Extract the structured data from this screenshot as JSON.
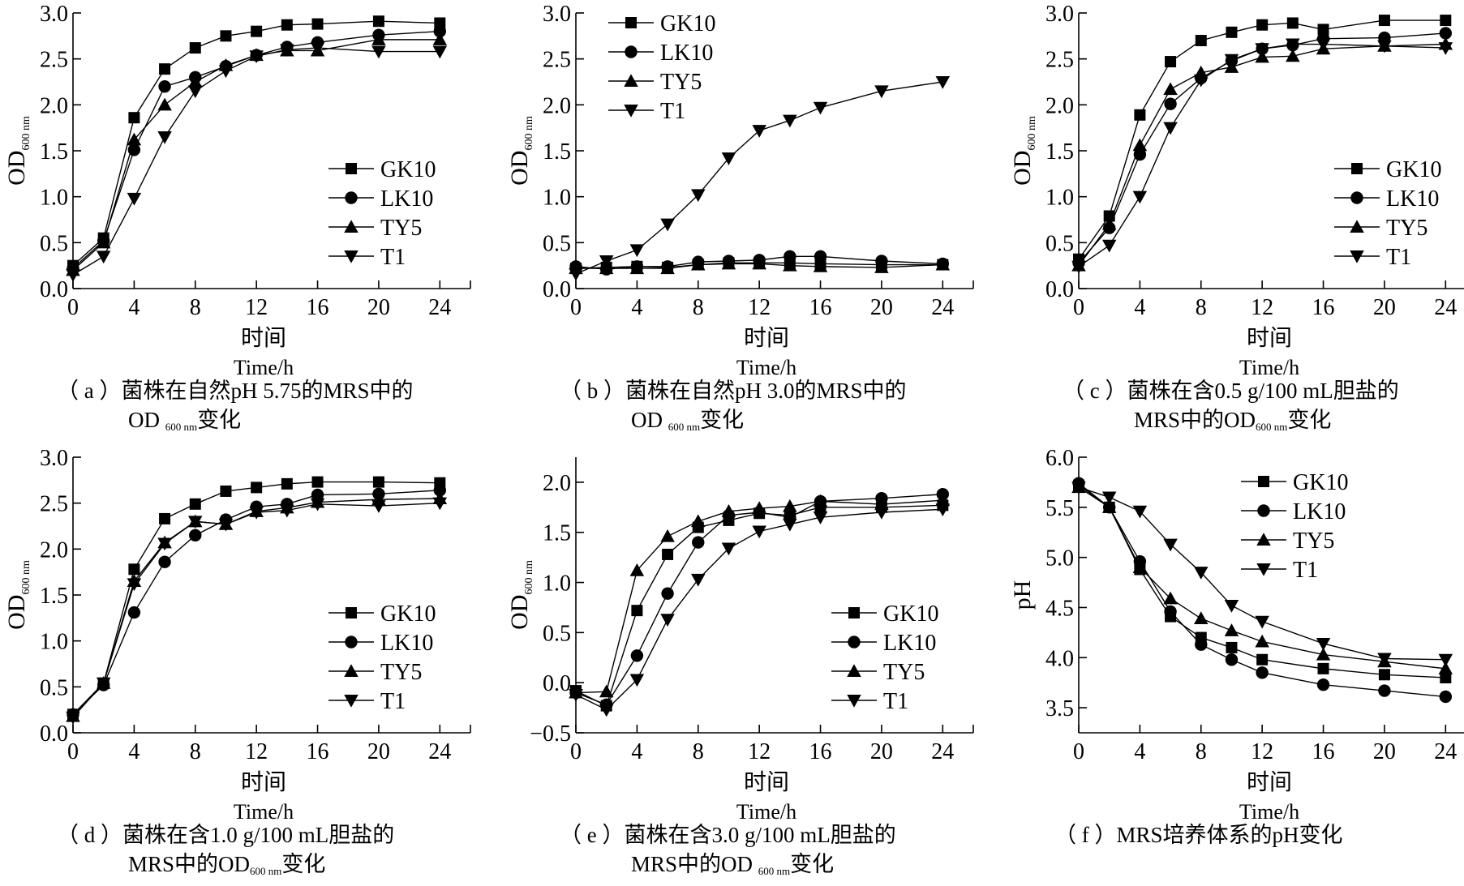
{
  "chart_data": [
    {
      "id": "a",
      "type": "line",
      "ylabel": "OD",
      "ylabel_sub": "600 nm",
      "xlabel_cn": "时间",
      "xlabel": "Time/h",
      "caption_tag": "（ a ）",
      "caption_line1": "菌株在自然pH 5.75的MRS中的",
      "caption_line2_pre": "OD ",
      "caption_line2_sub": "600 nm",
      "caption_line2_post": "变化",
      "xlim": [
        0,
        26
      ],
      "ylim": [
        0,
        3.0
      ],
      "xticks": [
        0,
        4,
        8,
        12,
        16,
        20,
        24
      ],
      "yticks": [
        0.0,
        0.5,
        1.0,
        1.5,
        2.0,
        2.5,
        3.0
      ],
      "ytick_labels": [
        "0.0",
        "0.5",
        "1.0",
        "1.5",
        "2.0",
        "2.5",
        "3.0"
      ],
      "legend_position": "bottom-right",
      "x": [
        0,
        2,
        4,
        6,
        8,
        10,
        12,
        14,
        16,
        20,
        24
      ],
      "series": [
        {
          "name": "GK10",
          "marker": "square",
          "values": [
            0.25,
            0.55,
            1.86,
            2.39,
            2.62,
            2.75,
            2.8,
            2.87,
            2.88,
            2.91,
            2.89
          ]
        },
        {
          "name": "LK10",
          "marker": "circle",
          "values": [
            0.22,
            0.52,
            1.51,
            2.2,
            2.3,
            2.42,
            2.54,
            2.63,
            2.68,
            2.76,
            2.8
          ]
        },
        {
          "name": "TY5",
          "marker": "triangle-up",
          "values": [
            0.2,
            0.5,
            1.62,
            2.0,
            2.25,
            2.43,
            2.54,
            2.59,
            2.59,
            2.71,
            2.71
          ]
        },
        {
          "name": "T1",
          "marker": "triangle-down",
          "values": [
            0.15,
            0.35,
            0.98,
            1.65,
            2.15,
            2.37,
            2.53,
            2.6,
            2.62,
            2.58,
            2.58
          ]
        }
      ]
    },
    {
      "id": "b",
      "type": "line",
      "ylabel": "OD",
      "ylabel_sub": "600 nm",
      "xlabel_cn": "时间",
      "xlabel": "Time/h",
      "caption_tag": "（ b ）",
      "caption_line1": "菌株在自然pH 3.0的MRS中的",
      "caption_line2_pre": "OD ",
      "caption_line2_sub": "600 nm",
      "caption_line2_post": "变化",
      "xlim": [
        0,
        26
      ],
      "ylim": [
        0,
        3.0
      ],
      "xticks": [
        0,
        4,
        8,
        12,
        16,
        20,
        24
      ],
      "yticks": [
        0.0,
        0.5,
        1.0,
        1.5,
        2.0,
        2.5,
        3.0
      ],
      "ytick_labels": [
        "0.0",
        "0.5",
        "1.0",
        "1.5",
        "2.0",
        "2.5",
        "3.0"
      ],
      "legend_position": "top-left",
      "x": [
        0,
        2,
        4,
        6,
        8,
        10,
        12,
        14,
        16,
        20,
        24
      ],
      "series": [
        {
          "name": "GK10",
          "marker": "square",
          "values": [
            0.22,
            0.23,
            0.24,
            0.23,
            0.26,
            0.28,
            0.28,
            0.28,
            0.27,
            0.26,
            0.26
          ]
        },
        {
          "name": "LK10",
          "marker": "circle",
          "values": [
            0.24,
            0.21,
            0.24,
            0.24,
            0.29,
            0.3,
            0.31,
            0.35,
            0.35,
            0.3,
            0.27
          ]
        },
        {
          "name": "TY5",
          "marker": "triangle-up",
          "values": [
            0.22,
            0.22,
            0.22,
            0.22,
            0.26,
            0.27,
            0.27,
            0.25,
            0.24,
            0.23,
            0.26
          ]
        },
        {
          "name": "T1",
          "marker": "triangle-down",
          "values": [
            0.16,
            0.3,
            0.42,
            0.7,
            1.02,
            1.42,
            1.72,
            1.83,
            1.97,
            2.15,
            2.25
          ]
        }
      ]
    },
    {
      "id": "c",
      "type": "line",
      "ylabel": "OD",
      "ylabel_sub": "600 nm",
      "xlabel_cn": "时间",
      "xlabel": "Time/h",
      "caption_tag": "（ c ）",
      "caption_line1": "菌株在含0.5 g/100 mL胆盐的",
      "caption_line2_pre": "MRS中的OD",
      "caption_line2_sub": "600 nm",
      "caption_line2_post": "变化",
      "xlim": [
        0,
        26
      ],
      "ylim": [
        0,
        3.0
      ],
      "xticks": [
        0,
        4,
        8,
        12,
        16,
        20,
        24
      ],
      "yticks": [
        0.0,
        0.5,
        1.0,
        1.5,
        2.0,
        2.5,
        3.0
      ],
      "ytick_labels": [
        "0.0",
        "0.5",
        "1.0",
        "1.5",
        "2.0",
        "2.5",
        "3.0"
      ],
      "legend_position": "bottom-right",
      "x": [
        0,
        2,
        4,
        6,
        8,
        10,
        12,
        14,
        16,
        20,
        24
      ],
      "series": [
        {
          "name": "GK10",
          "marker": "square",
          "values": [
            0.32,
            0.79,
            1.89,
            2.47,
            2.7,
            2.79,
            2.87,
            2.89,
            2.82,
            2.92,
            2.92
          ]
        },
        {
          "name": "LK10",
          "marker": "circle",
          "values": [
            0.28,
            0.66,
            1.46,
            2.01,
            2.29,
            2.48,
            2.61,
            2.65,
            2.72,
            2.73,
            2.78
          ]
        },
        {
          "name": "TY5",
          "marker": "triangle-up",
          "values": [
            0.25,
            0.7,
            1.56,
            2.17,
            2.35,
            2.41,
            2.52,
            2.53,
            2.61,
            2.64,
            2.66
          ]
        },
        {
          "name": "T1",
          "marker": "triangle-down",
          "values": [
            0.24,
            0.47,
            1.0,
            1.75,
            2.27,
            2.49,
            2.61,
            2.66,
            2.66,
            2.64,
            2.62
          ]
        }
      ]
    },
    {
      "id": "d",
      "type": "line",
      "ylabel": "OD",
      "ylabel_sub": "600 nm",
      "xlabel_cn": "时间",
      "xlabel": "Time/h",
      "caption_tag": "（ d ）",
      "caption_line1": "菌株在含1.0 g/100 mL胆盐的",
      "caption_line2_pre": "MRS中的OD",
      "caption_line2_sub": "600 nm",
      "caption_line2_post": "变化",
      "xlim": [
        0,
        26
      ],
      "ylim": [
        0,
        3.0
      ],
      "xticks": [
        0,
        4,
        8,
        12,
        16,
        20,
        24
      ],
      "yticks": [
        0.0,
        0.5,
        1.0,
        1.5,
        2.0,
        2.5,
        3.0
      ],
      "ytick_labels": [
        "0.0",
        "0.5",
        "1.0",
        "1.5",
        "2.0",
        "2.5",
        "3.0"
      ],
      "legend_position": "bottom-right",
      "x": [
        0,
        2,
        4,
        6,
        8,
        10,
        12,
        14,
        16,
        20,
        24
      ],
      "series": [
        {
          "name": "GK10",
          "marker": "square",
          "values": [
            0.2,
            0.54,
            1.78,
            2.33,
            2.49,
            2.63,
            2.67,
            2.71,
            2.73,
            2.73,
            2.72
          ]
        },
        {
          "name": "LK10",
          "marker": "circle",
          "values": [
            0.2,
            0.52,
            1.31,
            1.86,
            2.15,
            2.32,
            2.46,
            2.49,
            2.59,
            2.6,
            2.64
          ]
        },
        {
          "name": "TY5",
          "marker": "triangle-up",
          "values": [
            0.18,
            0.54,
            1.65,
            2.07,
            2.3,
            2.27,
            2.41,
            2.45,
            2.51,
            2.54,
            2.55
          ]
        },
        {
          "name": "T1",
          "marker": "triangle-down",
          "values": [
            0.17,
            0.54,
            1.62,
            2.06,
            2.3,
            2.27,
            2.4,
            2.42,
            2.49,
            2.47,
            2.5
          ]
        }
      ]
    },
    {
      "id": "e",
      "type": "line",
      "ylabel": "OD",
      "ylabel_sub": "600 nm",
      "xlabel_cn": "时间",
      "xlabel": "Time/h",
      "caption_tag": "（ e ）",
      "caption_line1": "菌株在含3.0 g/100 mL胆盐的",
      "caption_line2_pre": "MRS中的OD ",
      "caption_line2_sub": "600 nm",
      "caption_line2_post": "变化",
      "xlim": [
        0,
        26
      ],
      "ylim": [
        -0.5,
        2.25
      ],
      "xticks": [
        0,
        4,
        8,
        12,
        16,
        20,
        24
      ],
      "yticks": [
        -0.5,
        0.0,
        0.5,
        1.0,
        1.5,
        2.0
      ],
      "ytick_labels": [
        "−0.5",
        "0.0",
        "0.5",
        "1.0",
        "1.5",
        "2.0"
      ],
      "legend_position": "bottom-right",
      "x": [
        0,
        2,
        4,
        6,
        8,
        10,
        12,
        14,
        16,
        20,
        24
      ],
      "series": [
        {
          "name": "GK10",
          "marker": "square",
          "values": [
            -0.08,
            -0.23,
            0.72,
            1.28,
            1.55,
            1.62,
            1.69,
            1.67,
            1.75,
            1.75,
            1.77
          ]
        },
        {
          "name": "LK10",
          "marker": "circle",
          "values": [
            -0.1,
            -0.22,
            0.27,
            0.89,
            1.4,
            1.67,
            1.7,
            1.65,
            1.81,
            1.84,
            1.88
          ]
        },
        {
          "name": "TY5",
          "marker": "triangle-up",
          "values": [
            -0.1,
            -0.09,
            1.12,
            1.46,
            1.61,
            1.71,
            1.74,
            1.76,
            1.81,
            1.78,
            1.82
          ]
        },
        {
          "name": "T1",
          "marker": "triangle-down",
          "values": [
            -0.12,
            -0.27,
            0.03,
            0.63,
            1.03,
            1.34,
            1.51,
            1.58,
            1.65,
            1.7,
            1.73
          ]
        }
      ]
    },
    {
      "id": "f",
      "type": "line",
      "ylabel": "pH",
      "ylabel_sub": "",
      "xlabel_cn": "时间",
      "xlabel": "Time/h",
      "caption_tag": "（ f ）",
      "caption_line1": "MRS培养体系的pH变化",
      "caption_line2_pre": "",
      "caption_line2_sub": "",
      "caption_line2_post": "",
      "xlim": [
        0,
        26
      ],
      "ylim": [
        3.25,
        6.0
      ],
      "xticks": [
        0,
        4,
        8,
        12,
        16,
        20,
        24
      ],
      "yticks": [
        3.5,
        4.0,
        4.5,
        5.0,
        5.5,
        6.0
      ],
      "ytick_labels": [
        "3.5",
        "4.0",
        "4.5",
        "5.0",
        "5.5",
        "6.0"
      ],
      "legend_position": "top-right",
      "x": [
        0,
        2,
        4,
        6,
        8,
        10,
        12,
        16,
        20,
        24
      ],
      "series": [
        {
          "name": "GK10",
          "marker": "square",
          "values": [
            5.72,
            5.5,
            4.88,
            4.41,
            4.2,
            4.1,
            3.98,
            3.89,
            3.83,
            3.8
          ]
        },
        {
          "name": "LK10",
          "marker": "circle",
          "values": [
            5.74,
            5.5,
            4.96,
            4.46,
            4.13,
            3.98,
            3.85,
            3.73,
            3.67,
            3.61
          ]
        },
        {
          "name": "TY5",
          "marker": "triangle-up",
          "values": [
            5.7,
            5.5,
            4.9,
            4.59,
            4.39,
            4.27,
            4.16,
            4.03,
            3.96,
            3.89
          ]
        },
        {
          "name": "T1",
          "marker": "triangle-down",
          "values": [
            5.7,
            5.6,
            5.46,
            5.13,
            4.85,
            4.52,
            4.36,
            4.14,
            3.99,
            3.98
          ]
        }
      ]
    }
  ]
}
